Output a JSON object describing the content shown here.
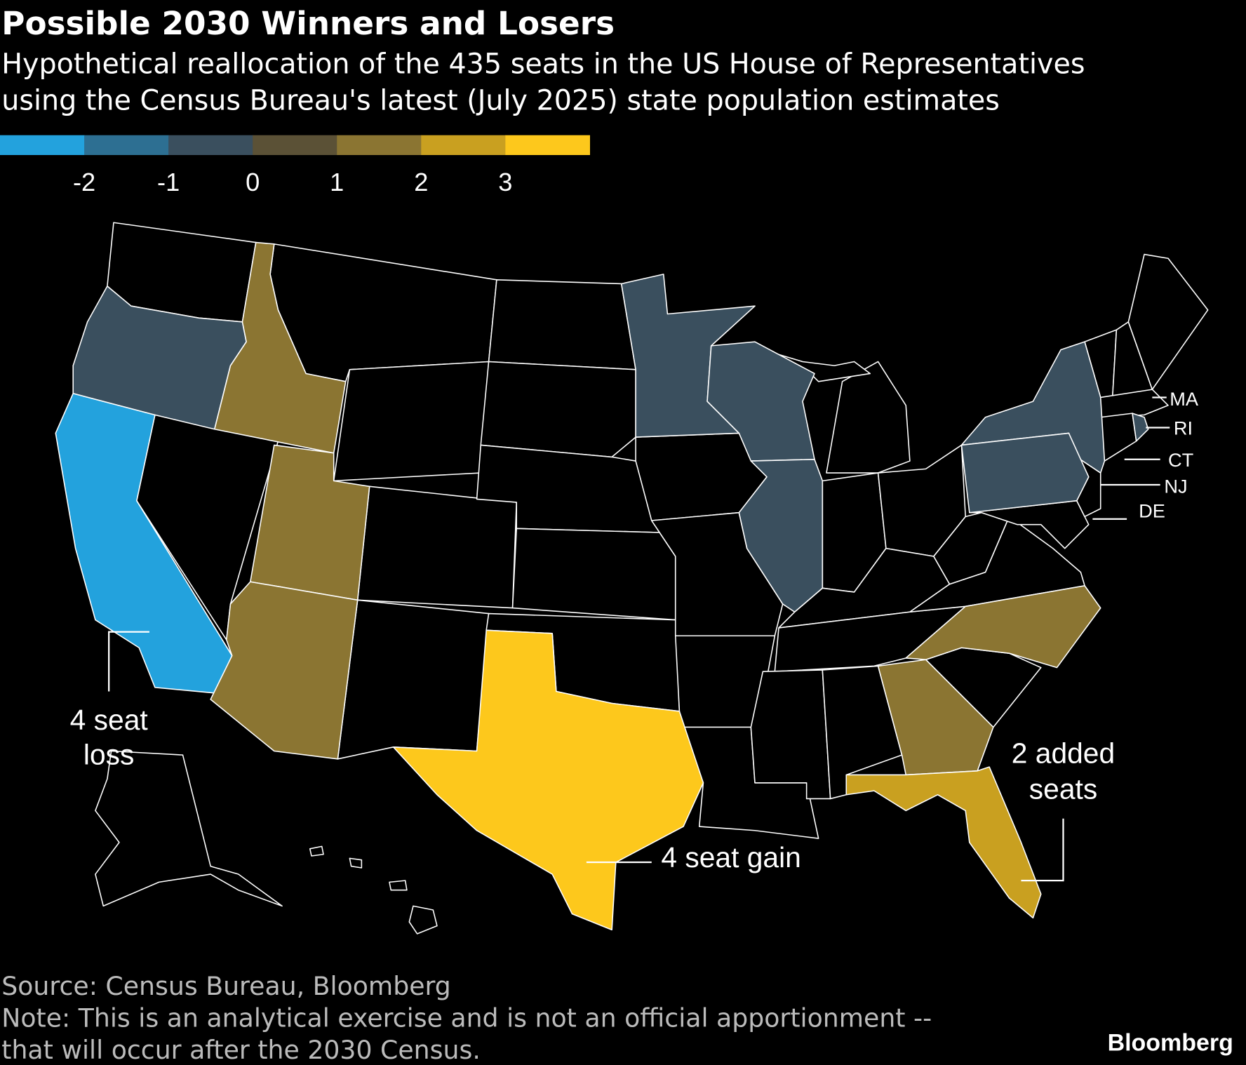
{
  "header": {
    "title": "Possible 2030 Winners and Losers",
    "subtitle": [
      "Hypothetical reallocation of the 435 seats in the US House of Representatives",
      "using the Census Bureau's latest (July 2025) state population estimates"
    ]
  },
  "legend": {
    "colors": [
      "#23a2dd",
      "#2d6f92",
      "#3a4f5e",
      "#5b5136",
      "#8b7532",
      "#c9a020",
      "#fdc81c"
    ],
    "ticks": [
      -2,
      -1,
      0,
      1,
      2,
      3
    ]
  },
  "map": {
    "values": [
      -4,
      -1,
      -1,
      -1,
      -1,
      -1,
      -1,
      -1,
      1,
      1,
      1,
      1,
      1,
      2,
      4
    ],
    "state_labels": [
      "MA",
      "RI",
      "CT",
      "NJ",
      "DE"
    ],
    "annotations": [
      [
        "4 seat",
        "loss"
      ],
      [
        "4 seat gain"
      ],
      [
        "2 added",
        "seats"
      ]
    ]
  },
  "footer": {
    "source": "Source: Census Bureau, Bloomberg",
    "note": [
      "Note: This is an analytical exercise and is not an official apportionment --",
      "that will occur after the 2030 Census."
    ],
    "brand": "Bloomberg"
  }
}
